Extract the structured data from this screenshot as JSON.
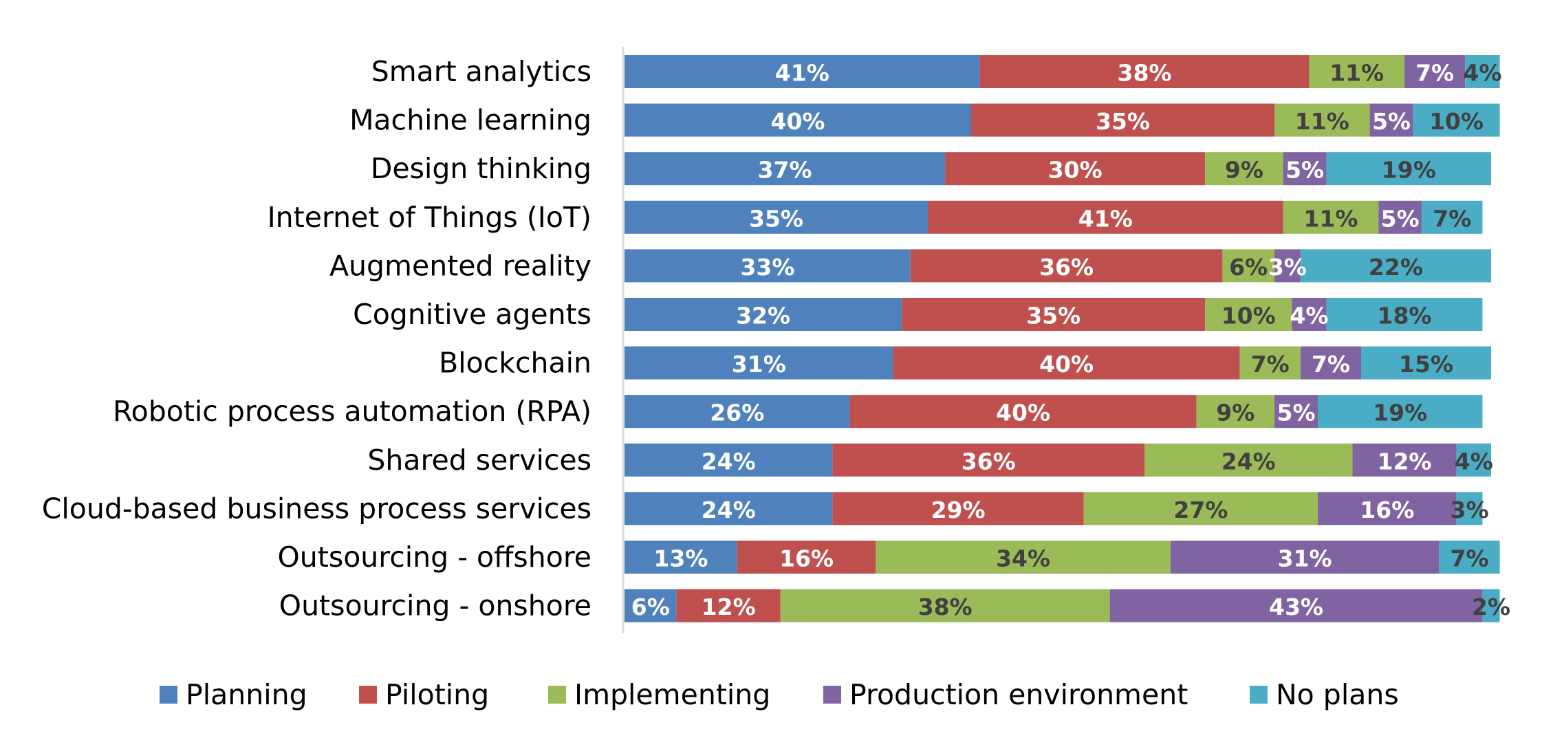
{
  "chart_data": {
    "type": "bar",
    "orientation": "horizontal",
    "stacked": true,
    "percent": true,
    "categories": [
      "Smart analytics",
      "Machine learning",
      "Design thinking",
      "Internet of Things (IoT)",
      "Augmented reality",
      "Cognitive agents",
      "Blockchain",
      "Robotic process automation (RPA)",
      "Shared services",
      "Cloud-based business process services",
      "Outsourcing - offshore",
      "Outsourcing - onshore"
    ],
    "series": [
      {
        "name": "Planning",
        "color": "#4F81BD",
        "label_color": "#FFFFFF",
        "values": [
          41,
          40,
          37,
          35,
          33,
          32,
          31,
          26,
          24,
          24,
          13,
          6
        ],
        "labels": [
          "41%",
          "40%",
          "37%",
          "35%",
          "33%",
          "32%",
          "31%",
          "26%",
          "24%",
          "24%",
          "13%",
          "6%"
        ]
      },
      {
        "name": "Piloting",
        "color": "#C0504D",
        "label_color": "#FFFFFF",
        "values": [
          38,
          35,
          30,
          41,
          36,
          35,
          40,
          40,
          36,
          29,
          16,
          12
        ],
        "labels": [
          "38%",
          "35%",
          "30%",
          "41%",
          "36%",
          "35%",
          "40%",
          "40%",
          "36%",
          "29%",
          "16%",
          "12%"
        ]
      },
      {
        "name": "Implementing",
        "color": "#9BBB59",
        "label_color": "#404040",
        "values": [
          11,
          11,
          9,
          11,
          6,
          10,
          7,
          9,
          24,
          27,
          34,
          38
        ],
        "labels": [
          "11%",
          "11%",
          "9%",
          "11%",
          "6%",
          "10%",
          "7%",
          "9%",
          "24%",
          "27%",
          "34%",
          "38%"
        ]
      },
      {
        "name": "Production environment",
        "color": "#8064A2",
        "label_color": "#FFFFFF",
        "values": [
          7,
          5,
          5,
          5,
          3,
          4,
          7,
          5,
          12,
          16,
          31,
          43
        ],
        "labels": [
          "7%",
          "5%",
          "5%",
          "5%",
          "3%",
          "4%",
          "7%",
          "5%",
          "12%",
          "16%",
          "31%",
          "43%"
        ]
      },
      {
        "name": "No plans",
        "color": "#4BACC6",
        "label_color": "#404040",
        "values": [
          4,
          10,
          19,
          7,
          22,
          18,
          15,
          19,
          4,
          3,
          7,
          2
        ],
        "labels": [
          "4%",
          "10%",
          "19%",
          "7%",
          "22%",
          "18%",
          "15%",
          "19%",
          "4%",
          "3%",
          "7%",
          "2%"
        ]
      }
    ],
    "title": "",
    "xlabel": "",
    "ylabel": "",
    "xlim": [
      0,
      100
    ],
    "grid": false,
    "legend_position": "bottom",
    "axis_line_color": "#D9D9D9"
  }
}
